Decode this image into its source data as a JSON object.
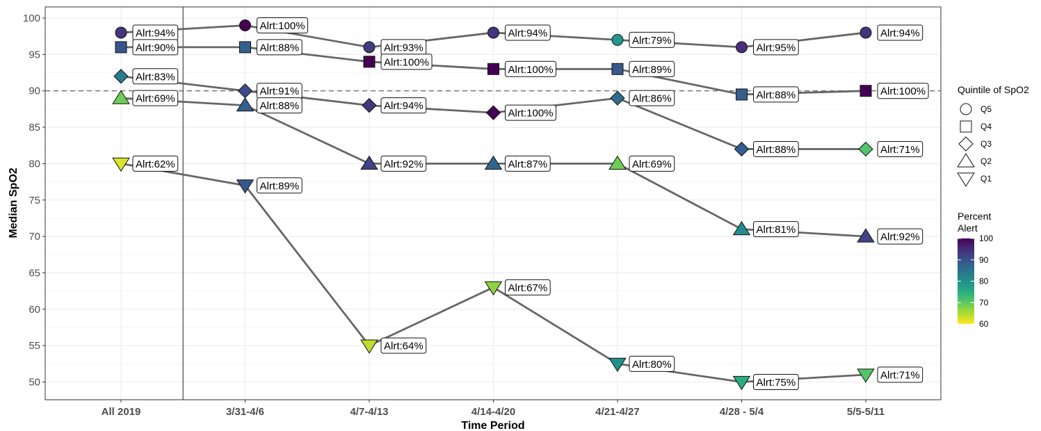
{
  "chart_data": {
    "type": "line",
    "xlabel": "Time Period",
    "ylabel": "Median SpO2",
    "categories": [
      "All 2019",
      "3/31-4/6",
      "4/7-4/13",
      "4/14-4/20",
      "4/21-4/27",
      "4/28 - 5/4",
      "5/5-5/11"
    ],
    "ylim": [
      48,
      101
    ],
    "yticks": [
      50,
      55,
      60,
      65,
      70,
      75,
      80,
      85,
      90,
      95,
      100
    ],
    "reference_line_y": 90,
    "vertical_separator_after_category": "All 2019",
    "grid": true,
    "label_prefix": "Alrt:",
    "label_suffix": "%",
    "series": [
      {
        "name": "Q5",
        "shape": "circle",
        "values": [
          98,
          99,
          96,
          98,
          97,
          96,
          98
        ],
        "alert": [
          94,
          100,
          93,
          94,
          79,
          95,
          94
        ]
      },
      {
        "name": "Q4",
        "shape": "square",
        "values": [
          96,
          96,
          94,
          93,
          93,
          89.5,
          90
        ],
        "alert": [
          90,
          88,
          100,
          100,
          89,
          88,
          100
        ]
      },
      {
        "name": "Q3",
        "shape": "diamond",
        "values": [
          92,
          90,
          88,
          87,
          89,
          82,
          82
        ],
        "alert": [
          83,
          91,
          94,
          100,
          86,
          88,
          71
        ]
      },
      {
        "name": "Q2",
        "shape": "triangle-up",
        "values": [
          89,
          88,
          80,
          80,
          80,
          71,
          70
        ],
        "alert": [
          69,
          88,
          92,
          87,
          69,
          81,
          92
        ]
      },
      {
        "name": "Q1",
        "shape": "triangle-down",
        "values": [
          80,
          77,
          55,
          63,
          52.5,
          50,
          51
        ],
        "alert": [
          62,
          89,
          64,
          67,
          80,
          75,
          71
        ]
      }
    ],
    "legend": {
      "shape_title": "Quintile of SpO2",
      "shape_items": [
        "Q5",
        "Q4",
        "Q3",
        "Q2",
        "Q1"
      ],
      "color_title_line1": "Percent",
      "color_title_line2": "Alert",
      "color_range": [
        60,
        100
      ],
      "color_ticks": [
        100,
        90,
        80,
        70,
        60
      ],
      "placement": "right"
    },
    "colors": {
      "line": "#666666",
      "ref_line": "#555555",
      "grid": "#ebebeb",
      "viridis": [
        "#440154",
        "#472d7b",
        "#3b528b",
        "#2c728e",
        "#21918c",
        "#28ae80",
        "#5ec962",
        "#addc30",
        "#fde725"
      ]
    }
  }
}
